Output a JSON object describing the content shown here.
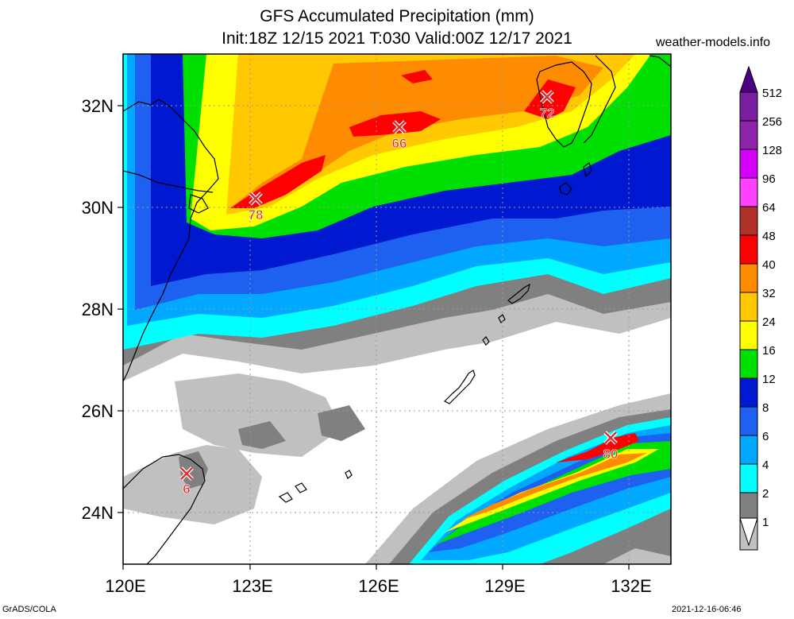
{
  "header": {
    "title_line1": "GFS Accumulated Precipitation (mm)",
    "title_line2": "Init:18Z 12/15 2021 T:030 Valid:00Z 12/17 2021",
    "website": "weather-models.info"
  },
  "axes": {
    "lat_labels": [
      "32N",
      "30N",
      "28N",
      "26N",
      "24N"
    ],
    "lon_labels": [
      "120E",
      "123E",
      "126E",
      "129E",
      "132E"
    ]
  },
  "markers": [
    {
      "value": "78",
      "lon": 123.1,
      "lat": 30.2
    },
    {
      "value": "66",
      "lon": 126.6,
      "lat": 31.6
    },
    {
      "value": "72",
      "lon": 130.2,
      "lat": 32.2
    },
    {
      "value": "80",
      "lon": 131.6,
      "lat": 25.5
    },
    {
      "value": "6",
      "lon": 121.5,
      "lat": 24.8
    }
  ],
  "legend": {
    "labels": [
      "512",
      "256",
      "128",
      "96",
      "64",
      "48",
      "40",
      "32",
      "24",
      "16",
      "12",
      "8",
      "6",
      "4",
      "2",
      "1"
    ],
    "colors": [
      "#7b1fa2",
      "#8e24aa",
      "#d500f9",
      "#ff40ff",
      "#b0302a",
      "#ff0000",
      "#ff8c00",
      "#ffc800",
      "#ffff00",
      "#00e000",
      "#0018d0",
      "#1e60f0",
      "#00a8ff",
      "#00ffff",
      "#808080",
      "#c0c0c0"
    ],
    "bottom_color": "#ffffff"
  },
  "footer": {
    "left": "GrADS/COLA",
    "right": "2021-12-16-06:46"
  }
}
